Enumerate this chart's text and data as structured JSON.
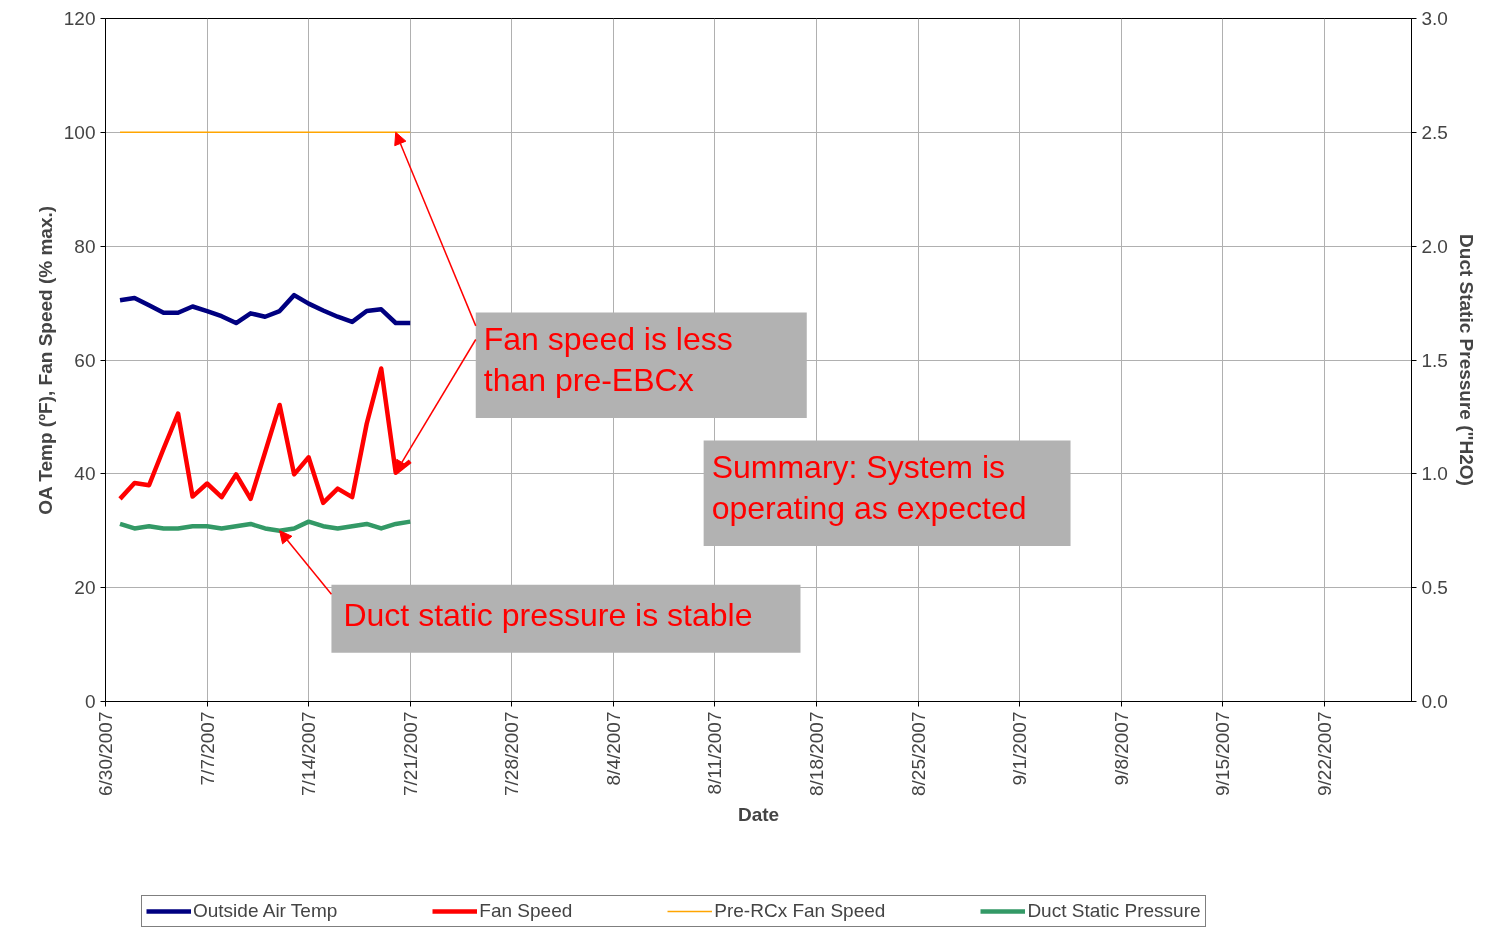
{
  "chart_data": {
    "type": "line",
    "xlabel": "Date",
    "ylabel": "OA Temp (ºF), Fan Speed (% max.)",
    "y2label": "Duct Static Pressure (\"H2O)",
    "x": [
      "2007-07-01",
      "2007-07-02",
      "2007-07-03",
      "2007-07-04",
      "2007-07-05",
      "2007-07-06",
      "2007-07-07",
      "2007-07-08",
      "2007-07-09",
      "2007-07-10",
      "2007-07-11",
      "2007-07-12",
      "2007-07-13",
      "2007-07-14",
      "2007-07-15",
      "2007-07-16",
      "2007-07-17",
      "2007-07-18",
      "2007-07-19",
      "2007-07-20",
      "2007-07-21"
    ],
    "series": [
      {
        "name": "Outside Air Temp",
        "color": "#000080",
        "values": [
          70.5,
          70.9,
          69.6,
          68.3,
          68.3,
          69.4,
          68.6,
          67.7,
          66.5,
          68.2,
          67.6,
          68.6,
          71.4,
          69.9,
          68.7,
          67.6,
          66.7,
          68.6,
          68.9,
          66.5,
          66.5
        ]
      },
      {
        "name": "Fan Speed",
        "color": "#ff0000",
        "values": [
          35.6,
          38.4,
          38.0,
          44.4,
          50.6,
          36.0,
          38.3,
          35.9,
          39.9,
          35.6,
          43.8,
          52.1,
          39.9,
          42.9,
          34.9,
          37.4,
          35.9,
          48.8,
          58.5,
          40.2,
          42.2
        ]
      },
      {
        "name": "Pre-RCx Fan Speed",
        "color": "#ffa500",
        "values": [
          100,
          100,
          100,
          100,
          100,
          100,
          100,
          100,
          100,
          100,
          100,
          100,
          100,
          100,
          100,
          100,
          100,
          100,
          100,
          100,
          100
        ]
      },
      {
        "name": "Duct Static Pressure",
        "color": "#339966",
        "axis": "y2",
        "values": [
          0.78,
          0.76,
          0.77,
          0.76,
          0.76,
          0.77,
          0.77,
          0.76,
          0.77,
          0.78,
          0.76,
          0.75,
          0.76,
          0.79,
          0.77,
          0.76,
          0.77,
          0.78,
          0.76,
          0.78,
          0.79
        ]
      }
    ],
    "xlim": [
      "2007-06-30",
      "2007-09-28"
    ],
    "xticks": [
      {
        "value": "2007-06-30",
        "label": "6/30/2007"
      },
      {
        "value": "2007-07-07",
        "label": "7/7/2007"
      },
      {
        "value": "2007-07-14",
        "label": "7/14/2007"
      },
      {
        "value": "2007-07-21",
        "label": "7/21/2007"
      },
      {
        "value": "2007-07-28",
        "label": "7/28/2007"
      },
      {
        "value": "2007-08-04",
        "label": "8/4/2007"
      },
      {
        "value": "2007-08-11",
        "label": "8/11/2007"
      },
      {
        "value": "2007-08-18",
        "label": "8/18/2007"
      },
      {
        "value": "2007-08-25",
        "label": "8/25/2007"
      },
      {
        "value": "2007-09-01",
        "label": "9/1/2007"
      },
      {
        "value": "2007-09-08",
        "label": "9/8/2007"
      },
      {
        "value": "2007-09-15",
        "label": "9/15/2007"
      },
      {
        "value": "2007-09-22",
        "label": "9/22/2007"
      }
    ],
    "ylim": [
      0,
      120
    ],
    "yticks": [
      0,
      20,
      40,
      60,
      80,
      100,
      120
    ],
    "y2lim": [
      0,
      3
    ],
    "y2ticks": [
      {
        "value": 0,
        "label": "0.0"
      },
      {
        "value": 0.5,
        "label": "0.5"
      },
      {
        "value": 1,
        "label": "1.0"
      },
      {
        "value": 1.5,
        "label": "1.5"
      },
      {
        "value": 2,
        "label": "2.0"
      },
      {
        "value": 2.5,
        "label": "2.5"
      },
      {
        "value": 3,
        "label": "3.0"
      }
    ],
    "annotations": [
      {
        "text": "Fan speed is less\nthan pre-EBCx",
        "x": "2007-07-20",
        "y": 40.2
      },
      "Summary: System is\noperating as expected",
      {
        "text": "Duct static pressure is stable",
        "x": "2007-07-12",
        "y": 30
      }
    ],
    "grid": true,
    "legend": "bottom",
    "marker": "none",
    "line_style": "solid"
  }
}
